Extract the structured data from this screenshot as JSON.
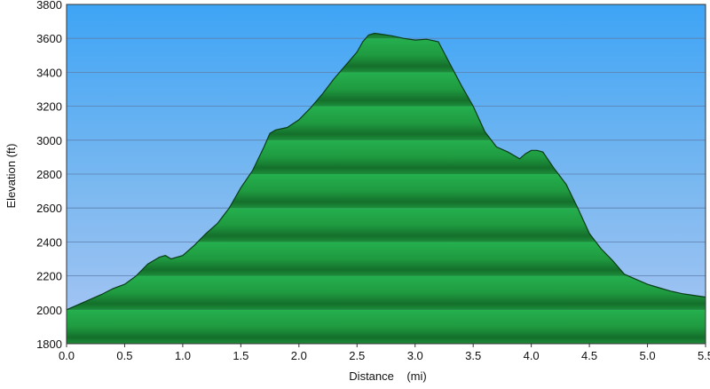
{
  "chart_data": {
    "type": "area",
    "xlabel": "Distance    (mi)",
    "ylabel": "Elevation (ft)",
    "xlim": [
      0,
      5.5
    ],
    "ylim": [
      1800,
      3800
    ],
    "x_ticks": [
      "0.0",
      "0.5",
      "1.0",
      "1.5",
      "2.0",
      "2.5",
      "3.0",
      "3.5",
      "4.0",
      "4.5",
      "5.0",
      "5.5"
    ],
    "y_ticks": [
      "1800",
      "2000",
      "2200",
      "2400",
      "2600",
      "2800",
      "3000",
      "3200",
      "3400",
      "3600",
      "3800"
    ],
    "grid": true,
    "series": [
      {
        "x": [
          0.0,
          0.1,
          0.2,
          0.3,
          0.4,
          0.5,
          0.6,
          0.7,
          0.8,
          0.85,
          0.9,
          1.0,
          1.1,
          1.2,
          1.3,
          1.4,
          1.5,
          1.6,
          1.7,
          1.75,
          1.8,
          1.9,
          2.0,
          2.1,
          2.2,
          2.3,
          2.4,
          2.5,
          2.55,
          2.6,
          2.65,
          2.7,
          2.8,
          2.9,
          3.0,
          3.1,
          3.2,
          3.3,
          3.4,
          3.5,
          3.6,
          3.7,
          3.8,
          3.9,
          3.95,
          4.0,
          4.05,
          4.1,
          4.2,
          4.3,
          4.4,
          4.5,
          4.6,
          4.7,
          4.8,
          4.9,
          5.0,
          5.1,
          5.2,
          5.3,
          5.4,
          5.5
        ],
        "y": [
          2000,
          2030,
          2060,
          2090,
          2125,
          2150,
          2200,
          2270,
          2310,
          2320,
          2300,
          2320,
          2380,
          2450,
          2510,
          2600,
          2720,
          2820,
          2960,
          3040,
          3060,
          3075,
          3120,
          3190,
          3270,
          3360,
          3440,
          3520,
          3580,
          3620,
          3630,
          3625,
          3615,
          3600,
          3590,
          3595,
          3580,
          3450,
          3320,
          3200,
          3050,
          2960,
          2930,
          2890,
          2920,
          2940,
          2940,
          2930,
          2830,
          2740,
          2600,
          2450,
          2360,
          2290,
          2210,
          2180,
          2150,
          2130,
          2110,
          2095,
          2085,
          2075
        ]
      }
    ]
  }
}
